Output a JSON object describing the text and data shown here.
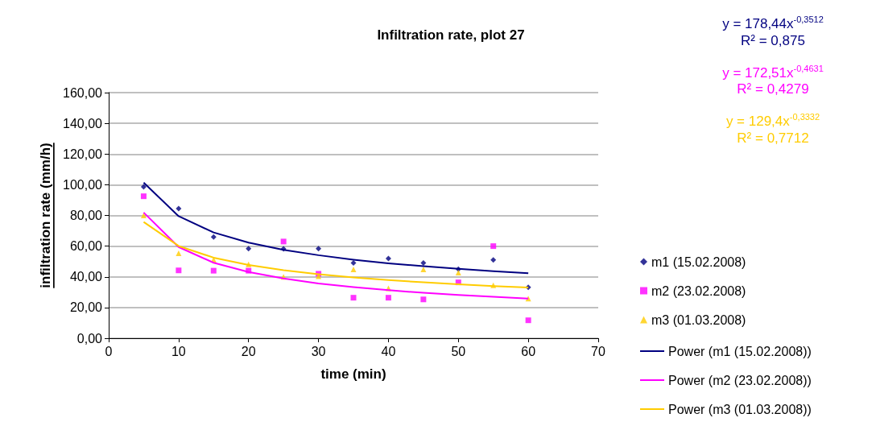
{
  "chart_data": {
    "type": "scatter",
    "title": "Infiltration rate, plot 27",
    "xlabel": "time (min)",
    "ylabel": "infiltration rate (mm/h)",
    "xlim": [
      0,
      70
    ],
    "xticks": [
      0,
      10,
      20,
      30,
      40,
      50,
      60,
      70
    ],
    "ylim": [
      0,
      160
    ],
    "yticks": [
      {
        "value": 0,
        "label": "0,00"
      },
      {
        "value": 20,
        "label": "20,00"
      },
      {
        "value": 40,
        "label": "40,00"
      },
      {
        "value": 60,
        "label": "60,00"
      },
      {
        "value": 80,
        "label": "80,00"
      },
      {
        "value": 100,
        "label": "100,00"
      },
      {
        "value": 120,
        "label": "120,00"
      },
      {
        "value": 140,
        "label": "140,00"
      },
      {
        "value": 160,
        "label": "160,00"
      }
    ],
    "grid": "y",
    "legend": "right",
    "series": [
      {
        "name": "m1 (15.02.2008)",
        "marker": "diamond",
        "color": "#000080",
        "x": [
          5,
          10,
          15,
          20,
          25,
          30,
          35,
          40,
          45,
          50,
          55,
          60
        ],
        "values": [
          98.6,
          84.5,
          66,
          58.4,
          58.2,
          58.4,
          49,
          52,
          49,
          45,
          51,
          33.2
        ]
      },
      {
        "name": "m2 (23.02.2008)",
        "marker": "square",
        "color": "#ff00ff",
        "x": [
          5,
          10,
          15,
          20,
          25,
          30,
          35,
          40,
          45,
          50,
          55,
          60
        ],
        "values": [
          92.5,
          44.2,
          44,
          44,
          63,
          42,
          26.4,
          26.4,
          25.3,
          36.4,
          60,
          11.7
        ]
      },
      {
        "name": "m3 (01.03.2008)",
        "marker": "triangle",
        "color": "#ffcc00",
        "x": [
          5,
          10,
          15,
          20,
          25,
          30,
          35,
          40,
          45,
          50,
          55,
          60
        ],
        "values": [
          80,
          55.4,
          51.2,
          48.1,
          40,
          40.4,
          44.8,
          32.5,
          44.8,
          42.7,
          34.5,
          25.9
        ]
      },
      {
        "name": "Power (m1 (15.02.2008))",
        "type": "line",
        "marker": "none",
        "line_style": "solid",
        "color": "#000080",
        "x": [
          5,
          10,
          15,
          20,
          25,
          30,
          35,
          40,
          45,
          50,
          55,
          60
        ],
        "values": [
          101.4,
          79.5,
          68.9,
          62.3,
          57.6,
          54.1,
          51.2,
          48.8,
          46.9,
          45.2,
          43.7,
          42.4
        ]
      },
      {
        "name": "Power (m2 (23.02.2008))",
        "type": "line",
        "marker": "none",
        "line_style": "solid",
        "color": "#ff00ff",
        "x": [
          5,
          10,
          15,
          20,
          25,
          30,
          35,
          40,
          45,
          50,
          55,
          60
        ],
        "values": [
          81.9,
          59.4,
          49.2,
          43.1,
          38.9,
          35.7,
          33.3,
          31.3,
          29.6,
          28.2,
          27.0,
          25.9
        ]
      },
      {
        "name": "Power (m3 (01.03.2008))",
        "type": "line",
        "marker": "none",
        "line_style": "solid",
        "color": "#ffcc00",
        "x": [
          5,
          10,
          15,
          20,
          25,
          30,
          35,
          40,
          45,
          50,
          55,
          60
        ],
        "values": [
          75.7,
          60.1,
          52.5,
          47.7,
          44.3,
          41.7,
          39.6,
          37.9,
          36.4,
          35.1,
          34.0,
          33.1
        ]
      }
    ],
    "annotations": [
      "y = 178,44x$^{-0,3512}$",
      "R² = 0,875",
      "y = 172,51x$^{-0,4631}$",
      "R² = 0,4279",
      "y = 129,4x$^{-0,3332}$",
      "R² = 0,7712"
    ]
  }
}
